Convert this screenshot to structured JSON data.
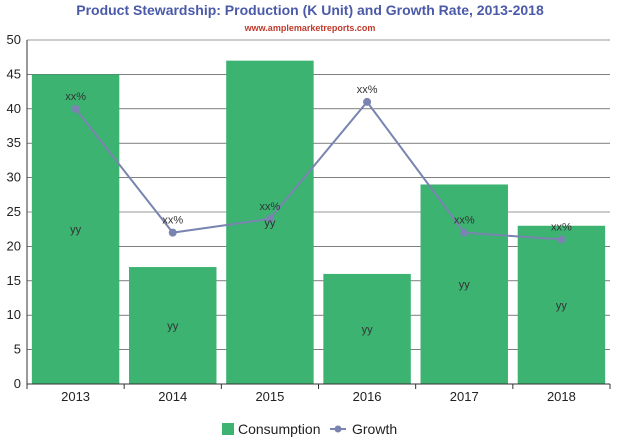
{
  "chart_data": {
    "type": "bar",
    "title": "Product Stewardship: Production (K Unit) and Growth Rate, 2013-2018",
    "subtitle": "www.amplemarketreports.com",
    "categories": [
      "2013",
      "2014",
      "2015",
      "2016",
      "2017",
      "2018"
    ],
    "ylim": [
      0,
      50
    ],
    "yticks": [
      "0",
      "5",
      "10",
      "15",
      "20",
      "25",
      "30",
      "35",
      "40",
      "45",
      "50"
    ],
    "grid": true,
    "legend_position": "bottom-center",
    "series": [
      {
        "name": "Consumption",
        "type": "bar",
        "color": "#3cb371",
        "values": [
          45,
          17,
          47,
          16,
          29,
          23
        ],
        "labels": [
          "yy",
          "yy",
          "yy",
          "yy",
          "yy",
          "yy"
        ]
      },
      {
        "name": "Growth",
        "type": "line",
        "color": "#7a84b0",
        "values": [
          40,
          22,
          24,
          41,
          22,
          21
        ],
        "labels": [
          "xx%",
          "xx%",
          "xx%",
          "xx%",
          "xx%",
          "xx%"
        ]
      }
    ]
  }
}
